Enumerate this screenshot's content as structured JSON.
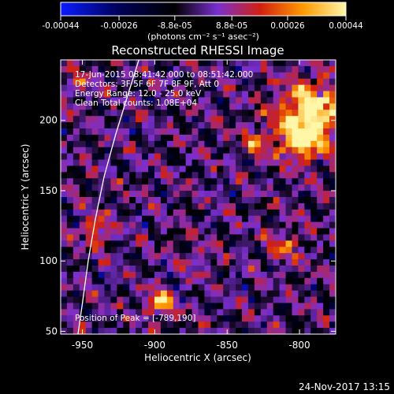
{
  "colorbar": {
    "tick_labels": [
      "-0.00044",
      "-0.00026",
      "-8.8e-05",
      "8.8e-05",
      "0.00026",
      "0.00044"
    ],
    "tick_values": [
      -0.00044,
      -0.00026,
      -8.8e-05,
      8.8e-05,
      0.00026,
      0.00044
    ],
    "range": [
      -0.00044,
      0.00044
    ],
    "units_label": "(photons cm⁻² s⁻¹ asec⁻²)",
    "colors": {
      "low": "#0a1cff",
      "mid": "#000000",
      "purple": "#7a2fd0",
      "red": "#d22010",
      "orange": "#ff9a00",
      "high": "#fff6a8"
    }
  },
  "chart_data": {
    "type": "heatmap",
    "title": "Reconstructed RHESSI Image",
    "xlabel": "Heliocentric X (arcsec)",
    "ylabel": "Heliocentric Y (arcsec)",
    "xlim": [
      -965,
      -775
    ],
    "ylim": [
      48,
      243
    ],
    "x_ticks": [
      -950,
      -900,
      -850,
      -800
    ],
    "y_ticks": [
      50,
      100,
      150,
      200
    ],
    "x_tick_labels": [
      "-950",
      "-900",
      "-850",
      "-800"
    ],
    "y_tick_labels": [
      "50",
      "100",
      "150",
      "200"
    ],
    "annotations": [
      "17-Jun-2015 08:41:42.000 to 08:51:42.000",
      "Detectors: 3F 5F 6F 7F 8F 9F, Att 0",
      "Energy Range: 12.0 - 25.0 keV",
      "Clean    Total counts: 1.08E+04"
    ],
    "peak_label": "Position of Peak = [-789,190]",
    "peak": [
      -789,
      190
    ],
    "limb_curve": [
      [
        -953,
        48
      ],
      [
        -950,
        70
      ],
      [
        -946,
        100
      ],
      [
        -941,
        130
      ],
      [
        -935,
        160
      ],
      [
        -927,
        190
      ],
      [
        -918,
        220
      ],
      [
        -911,
        243
      ]
    ],
    "bright_regions": [
      {
        "x": -792,
        "y": 205,
        "r": 22,
        "level": 1.0
      },
      {
        "x": -800,
        "y": 185,
        "r": 14,
        "level": 0.7
      },
      {
        "x": -897,
        "y": 70,
        "r": 9,
        "level": 0.8
      },
      {
        "x": -940,
        "y": 122,
        "r": 10,
        "level": 0.55
      },
      {
        "x": -830,
        "y": 185,
        "r": 10,
        "level": 0.45
      },
      {
        "x": -810,
        "y": 110,
        "r": 12,
        "level": 0.4
      },
      {
        "x": -955,
        "y": 225,
        "r": 10,
        "level": 0.35
      },
      {
        "x": -870,
        "y": 100,
        "r": 9,
        "level": 0.3
      }
    ]
  },
  "footer": {
    "timestamp": "24-Nov-2017 13:15"
  }
}
